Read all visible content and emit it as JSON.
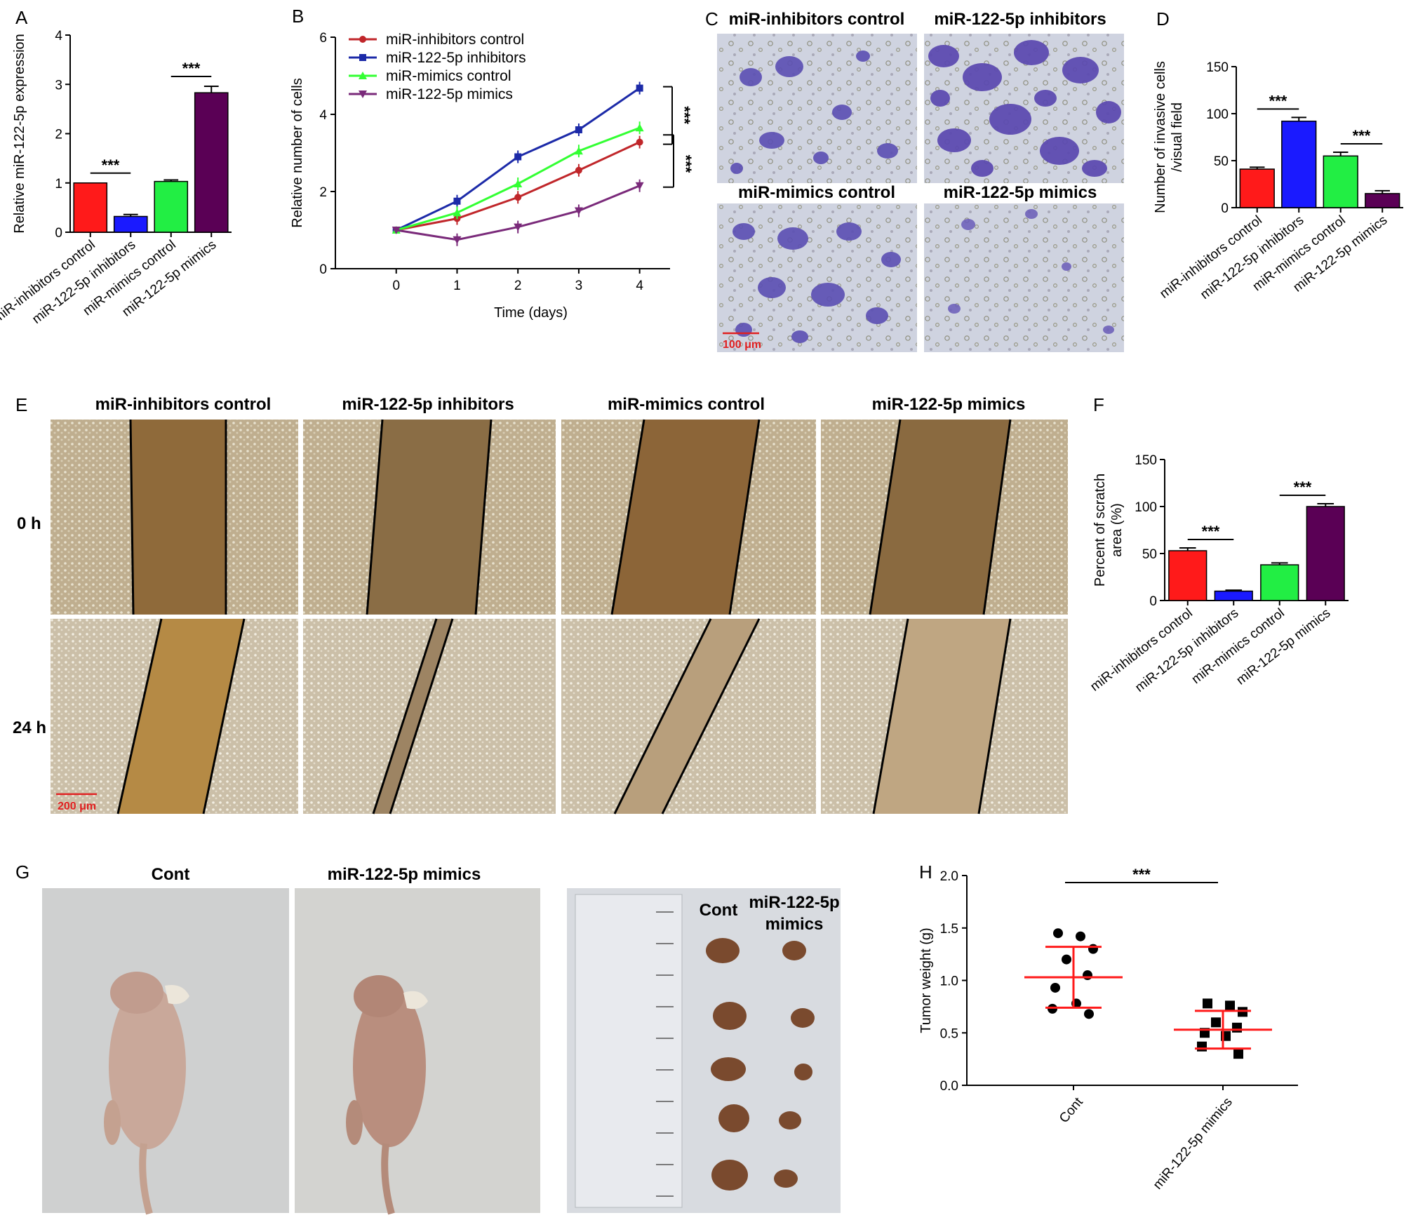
{
  "panels": {
    "A": "A",
    "B": "B",
    "C": "C",
    "D": "D",
    "E": "E",
    "F": "F",
    "G": "G",
    "H": "H"
  },
  "colors": {
    "red": "#ff1a1a",
    "blue": "#1a1aff",
    "green": "#22ee44",
    "purple": "#5a0055",
    "line_red": "#c0262a",
    "line_blue": "#1c2aa8",
    "line_green": "#33ff33",
    "line_purple": "#7a2a7a",
    "scale_red": "#e02020"
  },
  "icons": {
    "invasion_micrographs": "crystal-violet-stained-cells-image",
    "scratch_micrographs": "wound-healing-scratch-image",
    "mice_photos": "nude-mouse-photo",
    "tumor_photo": "excised-tumors-with-ruler-photo"
  },
  "panel_c": {
    "titles": [
      "miR-inhibitors control",
      "miR-122-5p inhibitors",
      "miR-mimics control",
      "miR-122-5p mimics"
    ],
    "scale_bar": "100 μm"
  },
  "panel_e": {
    "titles": [
      "miR-inhibitors control",
      "miR-122-5p inhibitors",
      "miR-mimics control",
      "miR-122-5p mimics"
    ],
    "rows": [
      "0 h",
      "24 h"
    ],
    "scale_bar": "200 μm"
  },
  "panel_g": {
    "titles": [
      "Cont",
      "miR-122-5p mimics"
    ],
    "tumor_labels": [
      "Cont",
      "miR-122-5p",
      "mimics"
    ]
  },
  "chart_data": [
    {
      "panel": "A",
      "type": "bar",
      "categories": [
        "miR-inhibitors control",
        "miR-122-5p inhibitors",
        "miR-mimics control",
        "miR-122-5p mimics"
      ],
      "values": [
        1.0,
        0.32,
        1.03,
        2.83
      ],
      "errors": [
        0,
        0.04,
        0.03,
        0.13
      ],
      "ylabel": "Relative miR-122-5p expression",
      "ylim": [
        0,
        4
      ],
      "yticks": [
        "0",
        "1",
        "2",
        "3",
        "4"
      ],
      "significance": [
        {
          "pair": [
            0,
            1
          ],
          "label": "***"
        },
        {
          "pair": [
            2,
            3
          ],
          "label": "***"
        }
      ]
    },
    {
      "panel": "B",
      "type": "line",
      "x": [
        0,
        1,
        2,
        3,
        4
      ],
      "xticks": [
        "0",
        "1",
        "2",
        "3",
        "4"
      ],
      "series": [
        {
          "name": "miR-inhibitors control",
          "values": [
            1.0,
            1.3,
            1.85,
            2.55,
            3.28
          ]
        },
        {
          "name": "miR-122-5p inhibitors",
          "values": [
            1.0,
            1.75,
            2.9,
            3.6,
            4.68
          ]
        },
        {
          "name": "miR-mimics control",
          "values": [
            1.0,
            1.45,
            2.2,
            3.05,
            3.65
          ]
        },
        {
          "name": "miR-122-5p mimics",
          "values": [
            1.0,
            0.75,
            1.08,
            1.5,
            2.15
          ]
        }
      ],
      "xlabel": "Time (days)",
      "ylabel": "Relative number of cells",
      "ylim": [
        0,
        6
      ],
      "yticks": [
        "0",
        "2",
        "4",
        "6"
      ],
      "significance": [
        "***",
        "***"
      ]
    },
    {
      "panel": "D",
      "type": "bar",
      "categories": [
        "miR-inhibitors control",
        "miR-122-5p inhibitors",
        "miR-mimics control",
        "miR-122-5p mimics"
      ],
      "values": [
        41,
        92,
        55,
        15
      ],
      "errors": [
        2,
        4,
        4,
        3
      ],
      "ylabel": "Number of invasive cells /visual field",
      "ylabel_lines": [
        "Number of invasive cells",
        "/visual field"
      ],
      "ylim": [
        0,
        150
      ],
      "yticks": [
        "0",
        "50",
        "100",
        "150"
      ],
      "significance": [
        {
          "pair": [
            0,
            1
          ],
          "label": "***"
        },
        {
          "pair": [
            2,
            3
          ],
          "label": "***"
        }
      ]
    },
    {
      "panel": "F",
      "type": "bar",
      "categories": [
        "miR-inhibitors control",
        "miR-122-5p inhibitors",
        "miR-mimics control",
        "miR-122-5p mimics"
      ],
      "values": [
        53,
        10,
        38,
        100
      ],
      "errors": [
        3,
        1,
        2,
        3
      ],
      "ylabel": "Percent of scratch area (%)",
      "ylabel_lines": [
        "Percent of scratch",
        "area (%)"
      ],
      "ylim": [
        0,
        150
      ],
      "yticks": [
        "0",
        "50",
        "100",
        "150"
      ],
      "significance": [
        {
          "pair": [
            0,
            1
          ],
          "label": "***"
        },
        {
          "pair": [
            2,
            3
          ],
          "label": "***"
        }
      ]
    },
    {
      "panel": "H",
      "type": "scatter",
      "categories": [
        "Cont",
        "miR-122-5p mimics"
      ],
      "groups": [
        {
          "name": "Cont",
          "values": [
            1.45,
            1.42,
            1.3,
            1.2,
            1.05,
            0.93,
            0.78,
            0.73,
            0.68
          ],
          "mean": 1.03,
          "sd": 0.29
        },
        {
          "name": "miR-122-5p mimics",
          "values": [
            0.78,
            0.76,
            0.7,
            0.6,
            0.55,
            0.5,
            0.47,
            0.37,
            0.3
          ],
          "mean": 0.53,
          "sd": 0.18
        }
      ],
      "ylabel": "Tumor weight (g)",
      "ylim": [
        0,
        2.0
      ],
      "yticks": [
        "0.0",
        "0.5",
        "1.0",
        "1.5",
        "2.0"
      ],
      "significance": "***"
    }
  ]
}
